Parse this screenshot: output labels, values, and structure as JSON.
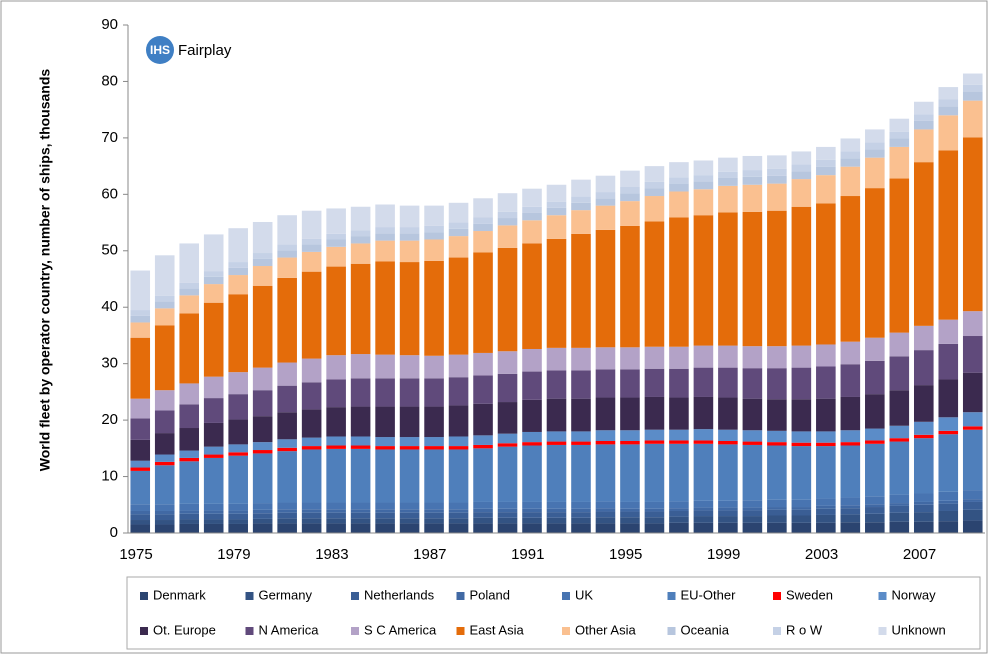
{
  "chart_data": {
    "type": "stacked_bar",
    "logo": {
      "mark": "IHS",
      "name": "Fairplay"
    },
    "y_label": "World fleet by operator country, number of ships, thousands",
    "categories": [
      "1975",
      null,
      null,
      null,
      "1979",
      null,
      null,
      null,
      "1983",
      null,
      null,
      null,
      "1987",
      null,
      null,
      null,
      "1991",
      null,
      null,
      null,
      "1995",
      null,
      null,
      null,
      "1999",
      null,
      null,
      null,
      "2003",
      null,
      null,
      null,
      "2007",
      null,
      null
    ],
    "ylim": [
      0,
      90
    ],
    "yticks": [
      0,
      10,
      20,
      30,
      40,
      50,
      60,
      70,
      80,
      90
    ],
    "legend": "bottom",
    "series": [
      {
        "name": "Denmark",
        "color": "#2b4470",
        "values": [
          1.5,
          1.5,
          1.6,
          1.6,
          1.6,
          1.7,
          1.7,
          1.7,
          1.7,
          1.7,
          1.7,
          1.7,
          1.7,
          1.7,
          1.7,
          1.7,
          1.7,
          1.7,
          1.7,
          1.7,
          1.7,
          1.7,
          1.8,
          1.8,
          1.8,
          1.8,
          1.8,
          1.8,
          1.8,
          1.9,
          1.9,
          2.0,
          2.0,
          2.1,
          2.2
        ]
      },
      {
        "name": "Germany",
        "color": "#335383",
        "values": [
          0.8,
          0.8,
          0.8,
          0.8,
          0.8,
          0.8,
          0.9,
          0.9,
          0.9,
          0.9,
          0.9,
          0.9,
          0.9,
          0.9,
          1.0,
          1.0,
          1.0,
          1.0,
          1.0,
          1.1,
          1.1,
          1.1,
          1.1,
          1.2,
          1.2,
          1.2,
          1.3,
          1.3,
          1.4,
          1.4,
          1.5,
          1.6,
          1.7,
          1.8,
          1.9
        ]
      },
      {
        "name": "Netherlands",
        "color": "#3a5e95",
        "values": [
          1.0,
          1.0,
          1.0,
          1.0,
          1.0,
          1.0,
          1.0,
          1.0,
          1.0,
          1.0,
          1.0,
          1.0,
          1.0,
          1.0,
          1.0,
          1.0,
          1.0,
          1.0,
          1.0,
          1.0,
          1.0,
          1.0,
          1.0,
          1.0,
          1.0,
          1.0,
          1.0,
          1.0,
          1.1,
          1.1,
          1.2,
          1.2,
          1.3,
          1.3,
          1.4
        ]
      },
      {
        "name": "Poland",
        "color": "#4169a4",
        "values": [
          0.6,
          0.6,
          0.6,
          0.6,
          0.6,
          0.6,
          0.6,
          0.6,
          0.6,
          0.6,
          0.6,
          0.6,
          0.6,
          0.6,
          0.6,
          0.6,
          0.6,
          0.6,
          0.6,
          0.6,
          0.5,
          0.5,
          0.5,
          0.5,
          0.5,
          0.5,
          0.5,
          0.5,
          0.5,
          0.5,
          0.5,
          0.5,
          0.5,
          0.5,
          0.5
        ]
      },
      {
        "name": "UK",
        "color": "#4874b1",
        "values": [
          1.2,
          1.2,
          1.2,
          1.2,
          1.2,
          1.2,
          1.2,
          1.2,
          1.2,
          1.2,
          1.2,
          1.2,
          1.2,
          1.2,
          1.2,
          1.2,
          1.2,
          1.2,
          1.2,
          1.2,
          1.2,
          1.2,
          1.2,
          1.2,
          1.2,
          1.3,
          1.3,
          1.3,
          1.3,
          1.4,
          1.4,
          1.5,
          1.5,
          1.6,
          1.6
        ]
      },
      {
        "name": "EU-Other",
        "color": "#4f7fbb",
        "values": [
          5.9,
          6.9,
          7.5,
          8.1,
          8.5,
          8.8,
          9.1,
          9.4,
          9.5,
          9.5,
          9.4,
          9.4,
          9.4,
          9.4,
          9.5,
          9.8,
          10.0,
          10.1,
          10.1,
          10.1,
          10.2,
          10.3,
          10.2,
          10.1,
          10.0,
          9.8,
          9.6,
          9.5,
          9.3,
          9.2,
          9.3,
          9.4,
          9.8,
          10.2,
          10.7
        ]
      },
      {
        "name": "Sweden",
        "color": "#ff0000",
        "values": [
          0.6,
          0.6,
          0.6,
          0.6,
          0.6,
          0.6,
          0.6,
          0.6,
          0.6,
          0.6,
          0.6,
          0.6,
          0.6,
          0.6,
          0.6,
          0.6,
          0.6,
          0.6,
          0.6,
          0.6,
          0.6,
          0.6,
          0.6,
          0.6,
          0.6,
          0.6,
          0.6,
          0.6,
          0.6,
          0.6,
          0.6,
          0.6,
          0.6,
          0.6,
          0.6
        ]
      },
      {
        "name": "Norway",
        "color": "#5b8cc8",
        "values": [
          1.2,
          1.3,
          1.3,
          1.4,
          1.4,
          1.4,
          1.5,
          1.5,
          1.6,
          1.6,
          1.6,
          1.6,
          1.6,
          1.7,
          1.7,
          1.7,
          1.8,
          1.8,
          1.8,
          1.9,
          1.9,
          1.9,
          1.9,
          2.0,
          2.0,
          2.0,
          2.0,
          2.0,
          2.0,
          2.1,
          2.1,
          2.2,
          2.3,
          2.4,
          2.5
        ]
      },
      {
        "name": "Ot. Europe",
        "color": "#3b2a4f",
        "values": [
          3.7,
          3.8,
          4.0,
          4.2,
          4.4,
          4.6,
          4.8,
          5.0,
          5.2,
          5.3,
          5.4,
          5.4,
          5.4,
          5.5,
          5.6,
          5.6,
          5.7,
          5.8,
          5.8,
          5.8,
          5.8,
          5.8,
          5.7,
          5.7,
          5.7,
          5.6,
          5.6,
          5.7,
          5.8,
          5.9,
          6.1,
          6.3,
          6.5,
          6.7,
          7.0
        ]
      },
      {
        "name": "N America",
        "color": "#604a7b",
        "values": [
          3.8,
          4.0,
          4.2,
          4.4,
          4.5,
          4.6,
          4.7,
          4.8,
          4.9,
          5.0,
          5.0,
          5.0,
          5.0,
          5.0,
          5.0,
          5.0,
          5.0,
          5.0,
          5.0,
          5.0,
          5.0,
          5.0,
          5.1,
          5.2,
          5.3,
          5.4,
          5.5,
          5.6,
          5.7,
          5.8,
          5.9,
          6.0,
          6.2,
          6.3,
          6.5
        ]
      },
      {
        "name": "S C America",
        "color": "#b3a2c7",
        "values": [
          3.5,
          3.6,
          3.7,
          3.8,
          3.9,
          4.0,
          4.1,
          4.2,
          4.3,
          4.3,
          4.2,
          4.1,
          4.0,
          4.0,
          4.0,
          4.0,
          4.0,
          4.0,
          4.0,
          3.9,
          3.9,
          3.9,
          3.9,
          3.9,
          3.9,
          3.9,
          3.9,
          3.9,
          3.9,
          4.0,
          4.1,
          4.2,
          4.3,
          4.3,
          4.4
        ]
      },
      {
        "name": "East Asia",
        "color": "#e46c0a",
        "values": [
          10.8,
          11.5,
          12.4,
          13.1,
          13.8,
          14.5,
          15.0,
          15.4,
          15.7,
          16.0,
          16.5,
          16.5,
          16.8,
          17.2,
          17.8,
          18.3,
          18.7,
          19.3,
          20.2,
          20.8,
          21.5,
          22.2,
          22.9,
          23.1,
          23.6,
          23.8,
          24.0,
          24.6,
          25.0,
          25.8,
          26.5,
          27.3,
          29.0,
          30.0,
          30.8
        ]
      },
      {
        "name": "Other Asia",
        "color": "#fac090",
        "values": [
          2.7,
          3.0,
          3.2,
          3.3,
          3.4,
          3.5,
          3.6,
          3.5,
          3.5,
          3.6,
          3.7,
          3.8,
          3.8,
          3.8,
          3.8,
          4.0,
          4.1,
          4.2,
          4.2,
          4.3,
          4.4,
          4.5,
          4.6,
          4.6,
          4.7,
          4.8,
          4.8,
          4.9,
          5.0,
          5.2,
          5.4,
          5.6,
          5.8,
          6.2,
          6.5
        ]
      },
      {
        "name": "Oceania",
        "color": "#b7c6de",
        "values": [
          1.2,
          1.2,
          1.2,
          1.3,
          1.3,
          1.3,
          1.3,
          1.3,
          1.3,
          1.3,
          1.3,
          1.3,
          1.3,
          1.3,
          1.3,
          1.3,
          1.3,
          1.3,
          1.3,
          1.3,
          1.4,
          1.4,
          1.4,
          1.4,
          1.4,
          1.4,
          1.4,
          1.4,
          1.5,
          1.5,
          1.5,
          1.5,
          1.5,
          1.6,
          1.6
        ]
      },
      {
        "name": "R o W",
        "color": "#c5d1e6",
        "values": [
          1.0,
          1.0,
          1.0,
          1.0,
          1.0,
          1.0,
          1.0,
          1.0,
          1.0,
          1.0,
          1.1,
          1.1,
          1.1,
          1.1,
          1.1,
          1.1,
          1.1,
          1.1,
          1.1,
          1.1,
          1.1,
          1.1,
          1.1,
          1.1,
          1.1,
          1.2,
          1.2,
          1.2,
          1.2,
          1.2,
          1.2,
          1.2,
          1.2,
          1.2,
          1.2
        ]
      },
      {
        "name": "Unknown",
        "color": "#d3dbeb",
        "values": [
          7.0,
          7.2,
          7.0,
          6.5,
          6.0,
          5.5,
          5.2,
          5.0,
          4.5,
          4.2,
          4.0,
          3.8,
          3.6,
          3.5,
          3.4,
          3.3,
          3.2,
          3.0,
          3.0,
          2.9,
          2.9,
          2.8,
          2.7,
          2.6,
          2.5,
          2.5,
          2.4,
          2.3,
          2.3,
          2.3,
          2.3,
          2.3,
          2.2,
          2.2,
          2.0
        ]
      }
    ]
  }
}
